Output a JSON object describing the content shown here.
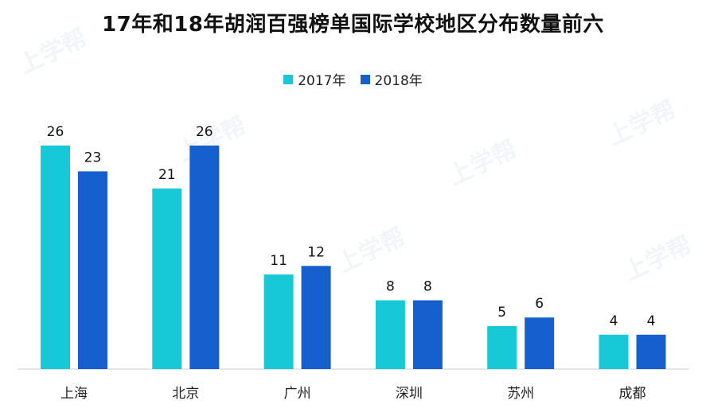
{
  "chart_data": {
    "type": "bar",
    "title": "17年和18年胡润百强榜单国际学校地区分布数量前六",
    "categories": [
      "上海",
      "北京",
      "广州",
      "深圳",
      "苏州",
      "成都"
    ],
    "series": [
      {
        "name": "2017年",
        "values": [
          26,
          21,
          11,
          8,
          5,
          4
        ]
      },
      {
        "name": "2018年",
        "values": [
          23,
          26,
          12,
          8,
          6,
          4
        ]
      }
    ],
    "ylim": [
      0,
      26
    ],
    "grid": false,
    "legend": "top-center",
    "colors": [
      "#17C9D6",
      "#1560CC"
    ]
  },
  "watermark": {
    "text": "上学帮"
  }
}
